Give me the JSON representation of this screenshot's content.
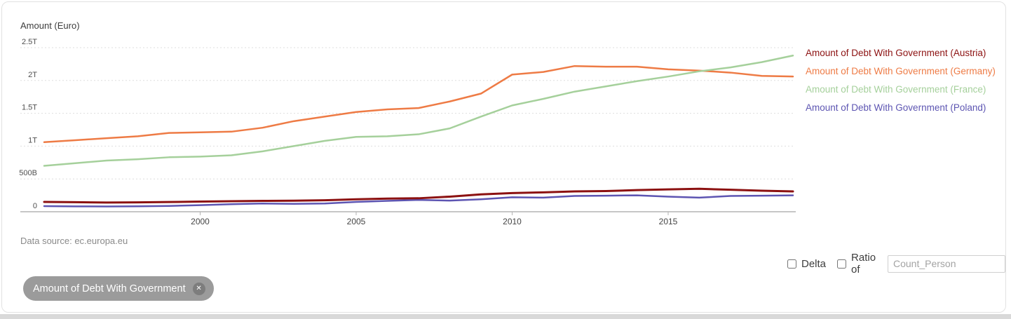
{
  "page": {
    "y_axis_title": "Amount (Euro)",
    "data_source": {
      "prefix": "Data source: ",
      "link": "ec.europa.eu"
    },
    "controls": {
      "delta_label": "Delta",
      "delta_checked": false,
      "ratio_label": "Ratio of",
      "ratio_checked": false,
      "ratio_input_placeholder": "Count_Person",
      "ratio_input_value": ""
    },
    "chip": {
      "label": "Amount of Debt With Government",
      "close_icon": "✕"
    }
  },
  "chart_data": {
    "type": "line",
    "title": "",
    "xlabel": "",
    "ylabel": "Amount (Euro)",
    "xlim": [
      1995,
      2019
    ],
    "ylim": [
      0,
      2500000000000
    ],
    "grid": "horizontal-dashed",
    "legend_position": "right",
    "x_ticks": [
      2000,
      2005,
      2010,
      2015
    ],
    "y_ticks": [
      {
        "value": 0,
        "label": "0"
      },
      {
        "value": 500000000000,
        "label": "500B"
      },
      {
        "value": 1000000000000,
        "label": "1T"
      },
      {
        "value": 1500000000000,
        "label": "1.5T"
      },
      {
        "value": 2000000000000,
        "label": "2T"
      },
      {
        "value": 2500000000000,
        "label": "2.5T"
      }
    ],
    "x": [
      1995,
      1996,
      1997,
      1998,
      1999,
      2000,
      2001,
      2002,
      2003,
      2004,
      2005,
      2006,
      2007,
      2008,
      2009,
      2010,
      2011,
      2012,
      2013,
      2014,
      2015,
      2016,
      2017,
      2018,
      2019
    ],
    "unit": "EUR, values in billions",
    "series": [
      {
        "key": "austria",
        "name": "Amount of Debt With Government (Austria)",
        "color": "#8c1111",
        "values_billion_eur": [
          150,
          145,
          140,
          143,
          148,
          155,
          160,
          165,
          168,
          175,
          190,
          200,
          205,
          230,
          265,
          285,
          295,
          310,
          315,
          330,
          340,
          350,
          335,
          320,
          310
        ]
      },
      {
        "key": "germany",
        "name": "Amount of Debt With Government (Germany)",
        "color": "#ee7b45",
        "values_billion_eur": [
          1060,
          1090,
          1120,
          1150,
          1200,
          1210,
          1220,
          1280,
          1380,
          1450,
          1520,
          1560,
          1580,
          1680,
          1800,
          2090,
          2130,
          2220,
          2210,
          2210,
          2170,
          2150,
          2120,
          2070,
          2060
        ]
      },
      {
        "key": "france",
        "name": "Amount of Debt With Government (France)",
        "color": "#a5d09b",
        "values_billion_eur": [
          700,
          740,
          780,
          800,
          830,
          840,
          860,
          920,
          1000,
          1080,
          1140,
          1150,
          1180,
          1270,
          1450,
          1620,
          1720,
          1830,
          1910,
          1990,
          2060,
          2140,
          2200,
          2280,
          2380
        ]
      },
      {
        "key": "poland",
        "name": "Amount of Debt With Government (Poland)",
        "color": "#5d55b2",
        "values_billion_eur": [
          85,
          82,
          80,
          83,
          88,
          100,
          115,
          125,
          120,
          125,
          150,
          165,
          180,
          170,
          190,
          220,
          215,
          240,
          245,
          250,
          230,
          215,
          240,
          245,
          250
        ]
      }
    ]
  }
}
